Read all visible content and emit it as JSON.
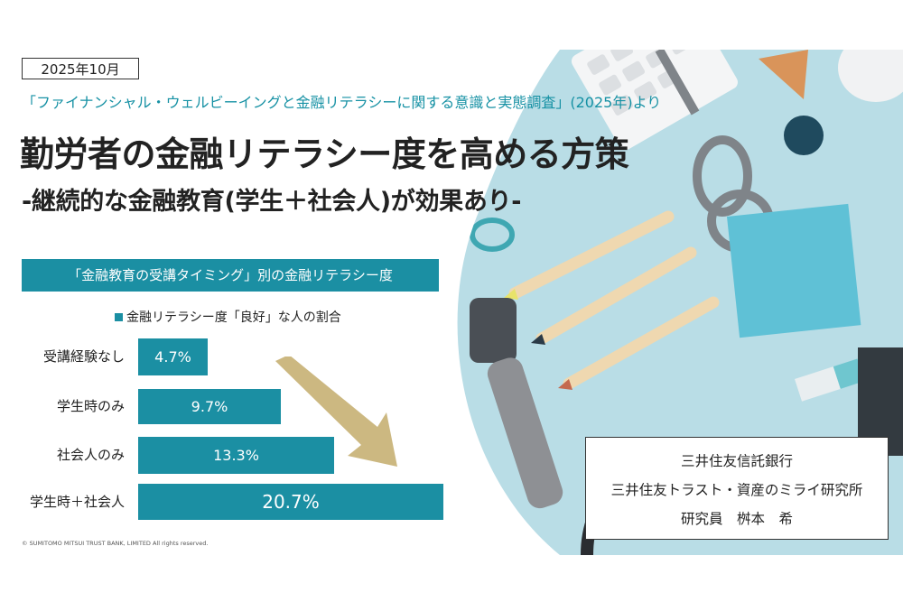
{
  "date": "2025年10月",
  "source_line": "「ファイナンシャル・ウェルビーイングと金融リテラシーに関する意識と実態調査」(2025年)より",
  "title": "勤労者の金融リテラシー度を高める方策",
  "subtitle": "-継続的な金融教育(学生＋社会人)が効果あり-",
  "chart_header": "「金融教育の受講タイミング」別の金融リテラシー度",
  "legend_label": "金融リテラシー度「良好」な人の割合",
  "copyright": "© SUMITOMO MITSUI TRUST BANK, LIMITED All rights reserved.",
  "credits": {
    "line1": "三井住友信託銀行",
    "line2": "三井住友トラスト・資産のミライ研究所",
    "line3": "研究員　桝本　希"
  },
  "colors": {
    "accent": "#1b8fa3",
    "arrow": "#c9b47a",
    "subtitle_text": "#1691a4"
  },
  "chart_data": {
    "type": "bar",
    "orientation": "horizontal",
    "categories": [
      "受講経験なし",
      "学生時のみ",
      "社会人のみ",
      "学生時＋社会人"
    ],
    "series": [
      {
        "name": "金融リテラシー度「良好」な人の割合",
        "values": [
          4.7,
          9.7,
          13.3,
          20.7
        ]
      }
    ],
    "data_labels": [
      "4.7%",
      "9.7%",
      "13.3%",
      "20.7%"
    ],
    "title": "「金融教育の受講タイミング」別の金融リテラシー度",
    "xlabel": "",
    "ylabel": ""
  }
}
